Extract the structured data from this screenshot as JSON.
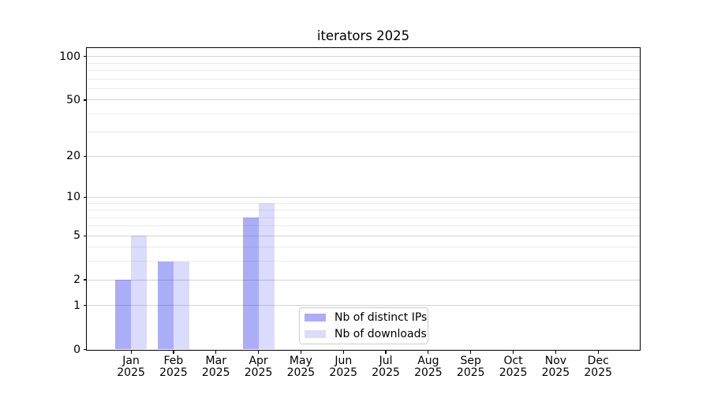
{
  "chart_data": {
    "type": "bar",
    "title": "iterators 2025",
    "x_months": [
      "Jan",
      "Feb",
      "Mar",
      "Apr",
      "May",
      "Jun",
      "Jul",
      "Aug",
      "Sep",
      "Oct",
      "Nov",
      "Dec"
    ],
    "x_year": "2025",
    "categories": [
      "Jan 2025",
      "Feb 2025",
      "Mar 2025",
      "Apr 2025",
      "May 2025",
      "Jun 2025",
      "Jul 2025",
      "Aug 2025",
      "Sep 2025",
      "Oct 2025",
      "Nov 2025",
      "Dec 2025"
    ],
    "series": [
      {
        "name": "Nb of distinct IPs",
        "color": "rgba(15,21,232,0.35)",
        "values": [
          2,
          3,
          0,
          7,
          0,
          0,
          0,
          0,
          0,
          0,
          0,
          0
        ]
      },
      {
        "name": "Nb of downloads",
        "color": "rgba(15,21,232,0.15)",
        "values": [
          5,
          3,
          0,
          9,
          0,
          0,
          0,
          0,
          0,
          0,
          0,
          0
        ]
      }
    ],
    "y_scale": "log1p",
    "yticks": [
      0,
      1,
      2,
      5,
      10,
      20,
      50,
      100
    ],
    "y_minor_gridlines": [
      3,
      4,
      6,
      7,
      8,
      9,
      30,
      40,
      60,
      70,
      80,
      90
    ],
    "ylim": [
      0,
      115
    ],
    "grid": "horizontal",
    "legend": {
      "position": "lower-center-inside",
      "labels": [
        "Nb of distinct IPs",
        "Nb of downloads"
      ]
    }
  },
  "colors": {
    "grid_major": "#d4d4d4",
    "grid_minor": "#ebebeb",
    "axis": "#000000",
    "background": "#ffffff"
  }
}
